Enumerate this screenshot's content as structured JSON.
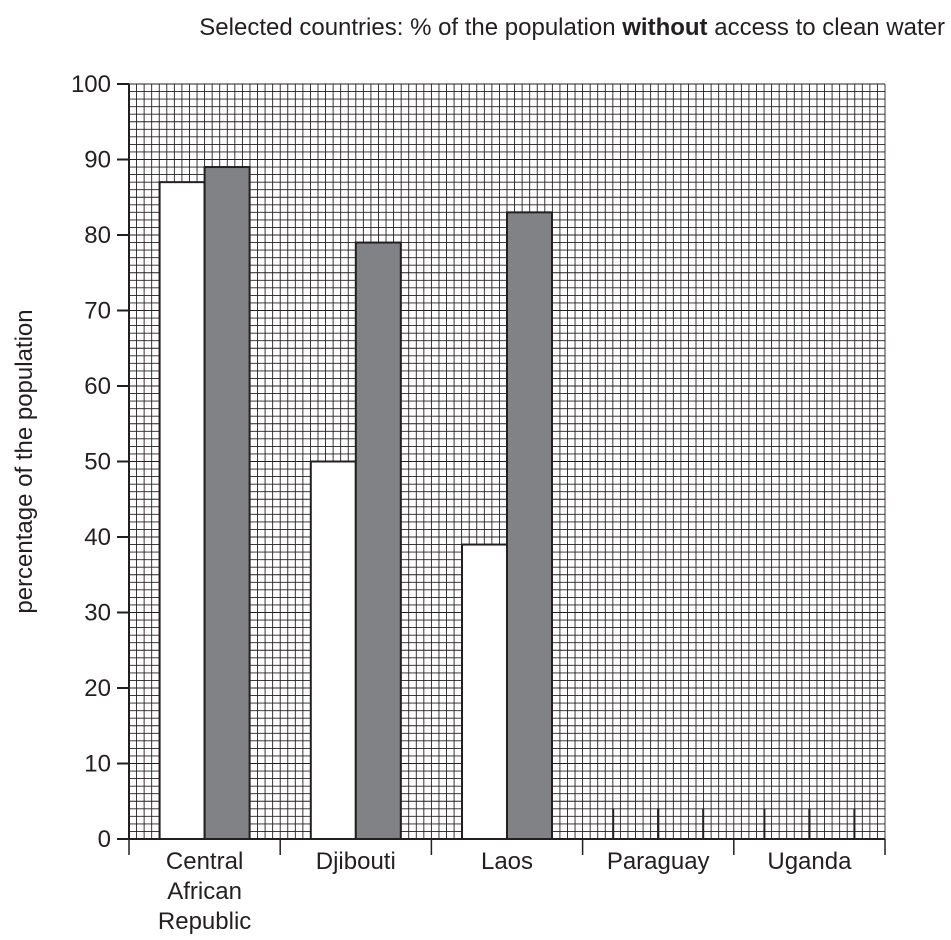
{
  "chart_data": {
    "type": "bar",
    "title_parts": {
      "before": "Selected countries: % of the population ",
      "emphasis": "without",
      "after": " access to clean water"
    },
    "ylabel": "percentage of the population",
    "xlabel": "",
    "ylim": [
      0,
      100
    ],
    "y_ticks": [
      0,
      10,
      20,
      30,
      40,
      50,
      60,
      70,
      80,
      90,
      100
    ],
    "grid": true,
    "categories": [
      [
        "Central",
        "African",
        "Republic"
      ],
      [
        "Djibouti"
      ],
      [
        "Laos"
      ],
      [
        "Paraguay"
      ],
      [
        "Uganda"
      ]
    ],
    "series": [
      {
        "color": "#ffffff",
        "values": [
          87,
          50,
          39,
          null,
          null
        ]
      },
      {
        "color": "#808285",
        "values": [
          89,
          79,
          83,
          null,
          null
        ]
      }
    ]
  }
}
